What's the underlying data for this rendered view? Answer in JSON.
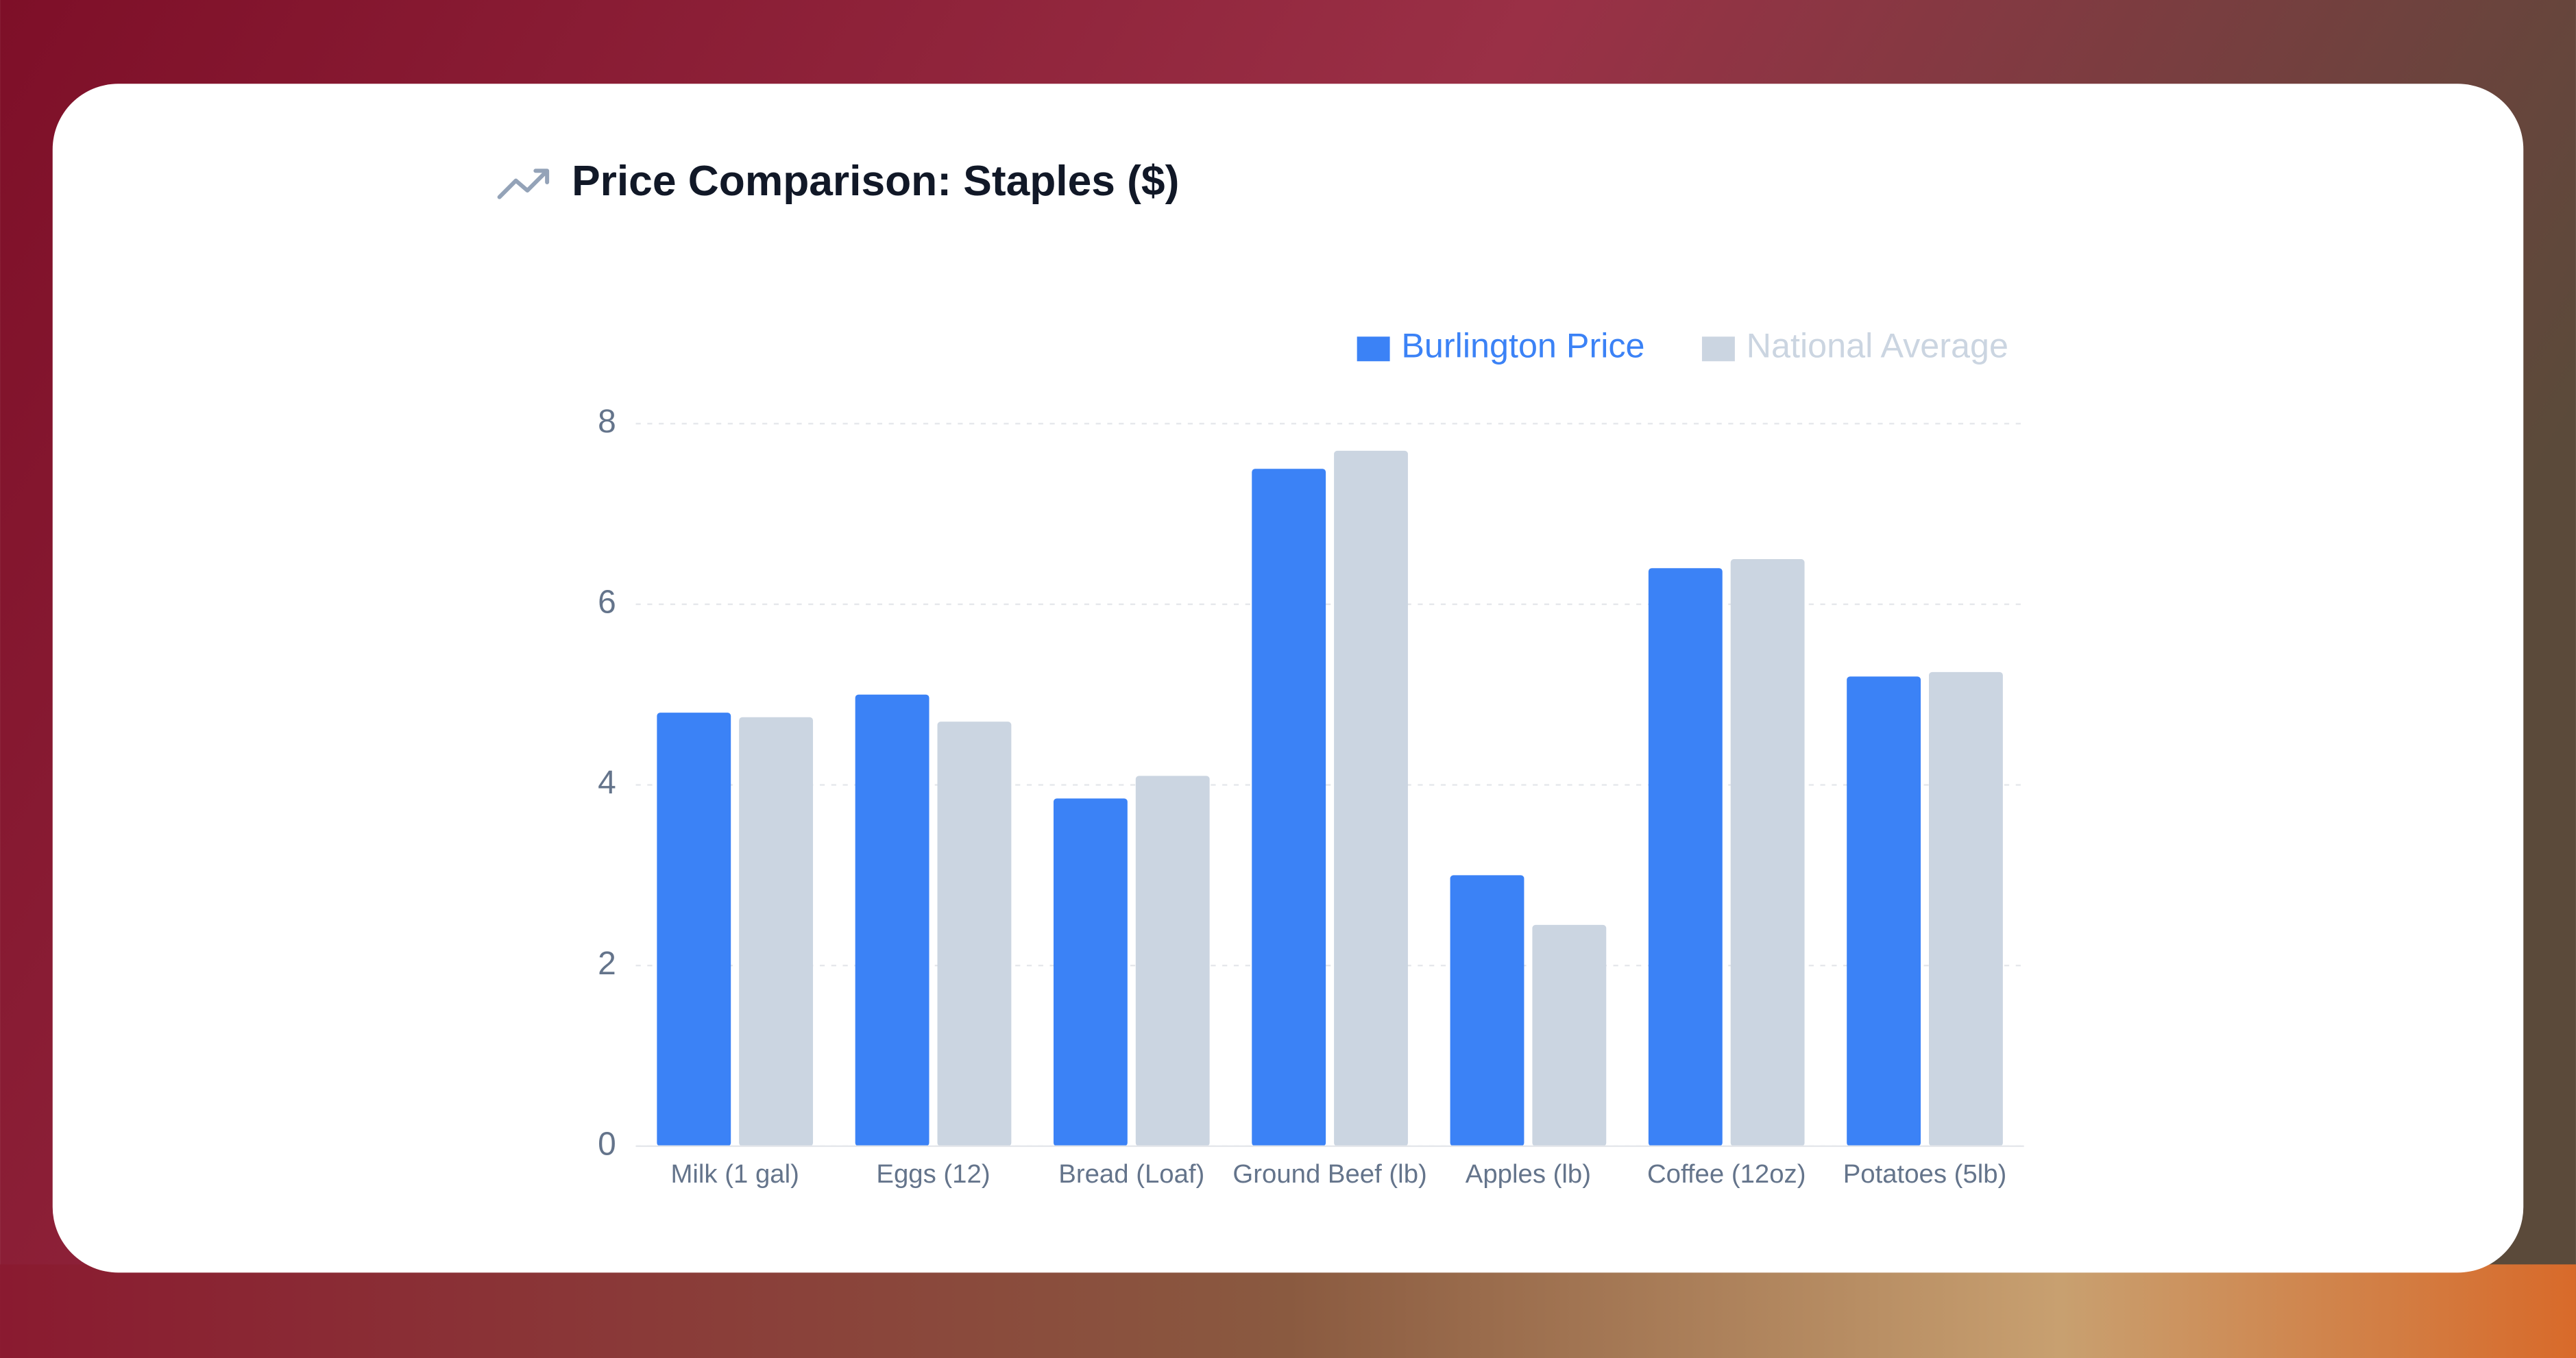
{
  "chart_data": {
    "type": "bar",
    "title": "Price Comparison: Staples ($)",
    "categories": [
      "Milk (1 gal)",
      "Eggs (12)",
      "Bread (Loaf)",
      "Ground Beef (lb)",
      "Apples (lb)",
      "Coffee (12oz)",
      "Potatoes (5lb)"
    ],
    "series": [
      {
        "name": "Burlington Price",
        "color": "#3b82f6",
        "values": [
          4.8,
          5.0,
          3.85,
          7.5,
          3.0,
          6.4,
          5.2
        ]
      },
      {
        "name": "National Average",
        "color": "#cbd5e1",
        "values": [
          4.75,
          4.7,
          4.1,
          7.7,
          2.45,
          6.5,
          5.25
        ]
      }
    ],
    "ylim": [
      0,
      8
    ],
    "yticks": [
      0,
      2,
      4,
      6,
      8
    ],
    "grid": true,
    "legend": "top-right"
  }
}
